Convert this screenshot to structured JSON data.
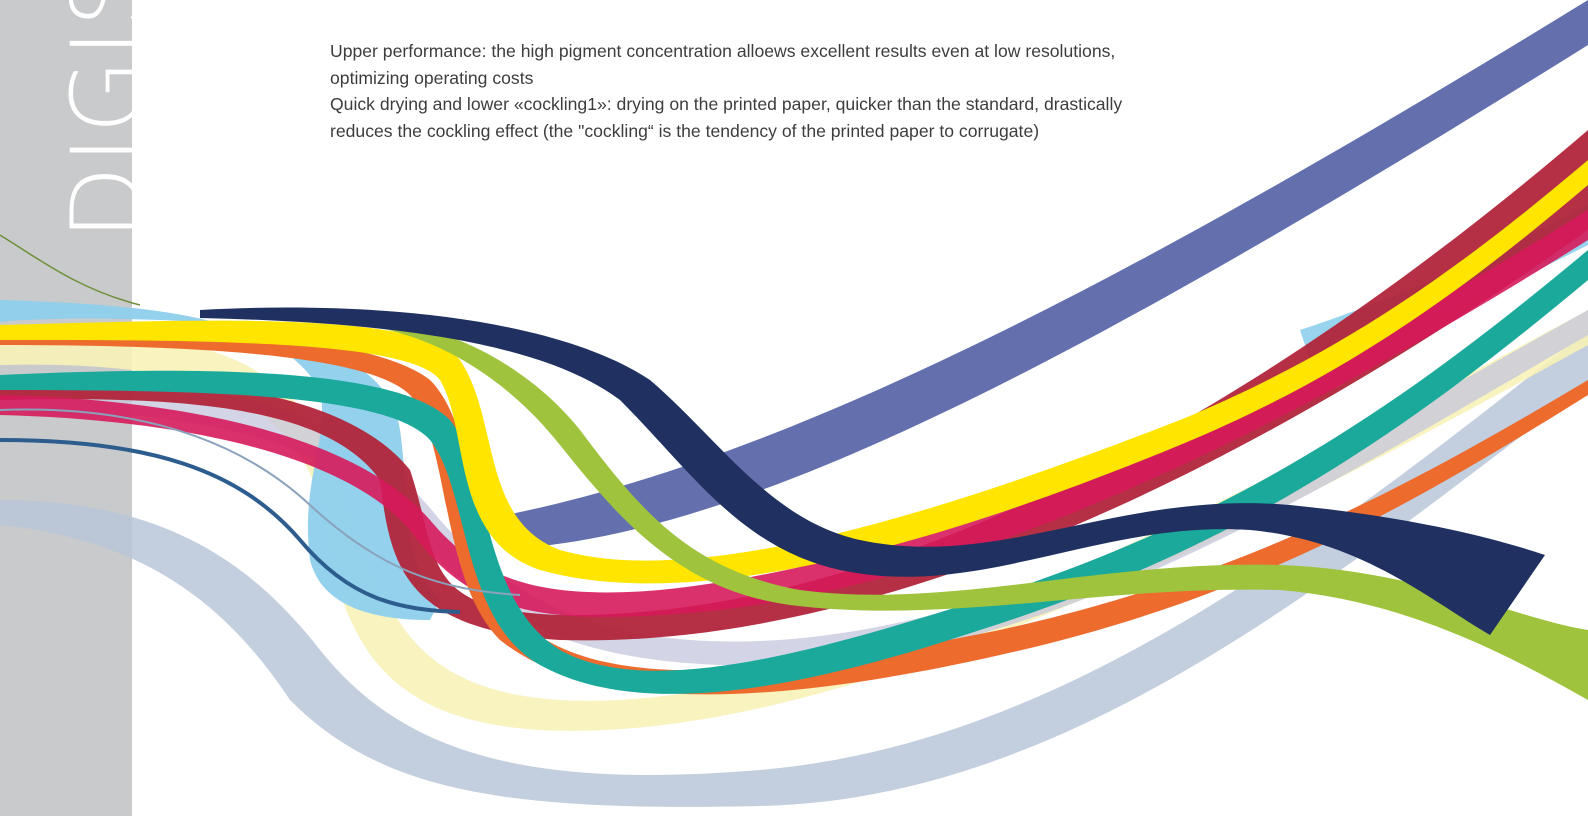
{
  "sidebar": {
    "title": "DIGIST",
    "background": "#c9cacb"
  },
  "body_text": {
    "paragraph_1": "Upper performance: the high pigment concentration alloews excellent results even at low resolutions, optimizing operating costs",
    "paragraph_2": "Quick drying and lower «cockling1»: drying on the printed paper, quicker than the standard, drastically reduces the cockling effect (the \"cockling“ is the tendency of the printed paper to corrugate)"
  },
  "ribbon_colors": {
    "navy_band": "#6470ad",
    "dark_red": "#b1253a",
    "yellow": "#ffe500",
    "light_blue": "#8ecfec",
    "teal": "#1ba99c",
    "magenta": "#d6195b",
    "orange": "#ec6b2d",
    "lime_green": "#9fc33c",
    "dark_navy": "#1f3061",
    "grey_blue": "#b8c5d8",
    "pale_yellow": "#f7f2b8",
    "lavender": "#c4c6de"
  }
}
